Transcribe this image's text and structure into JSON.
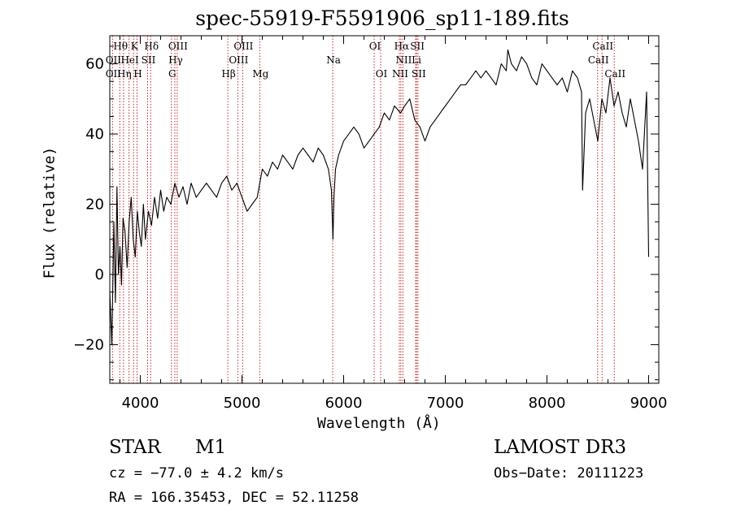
{
  "chart_data": {
    "type": "line",
    "title": "spec-55919-F5591906_sp11-189.fits",
    "xlabel": "Wavelength (Å)",
    "ylabel": "Flux (relative)",
    "xlim": [
      3700,
      9100
    ],
    "ylim": [
      -31,
      68
    ],
    "xticks": [
      4000,
      5000,
      6000,
      7000,
      8000,
      9000
    ],
    "xtick_labels": [
      "4000",
      "5000",
      "6000",
      "7000",
      "8000",
      "9000"
    ],
    "yticks": [
      -20,
      0,
      20,
      40,
      60
    ],
    "ytick_labels": [
      "−20",
      "0",
      "20",
      "40",
      "60"
    ],
    "series": [
      {
        "name": "spectrum",
        "x": [
          3700,
          3720,
          3740,
          3755,
          3770,
          3785,
          3800,
          3815,
          3830,
          3850,
          3870,
          3890,
          3910,
          3930,
          3950,
          3970,
          3990,
          4010,
          4030,
          4050,
          4080,
          4110,
          4140,
          4170,
          4200,
          4230,
          4260,
          4300,
          4340,
          4380,
          4420,
          4460,
          4500,
          4550,
          4600,
          4650,
          4700,
          4750,
          4800,
          4850,
          4900,
          4950,
          5000,
          5050,
          5100,
          5150,
          5200,
          5250,
          5300,
          5350,
          5400,
          5450,
          5500,
          5550,
          5600,
          5650,
          5700,
          5750,
          5800,
          5850,
          5880,
          5895,
          5905,
          5920,
          5950,
          6000,
          6050,
          6100,
          6150,
          6200,
          6250,
          6300,
          6350,
          6400,
          6450,
          6500,
          6560,
          6600,
          6650,
          6700,
          6750,
          6800,
          6850,
          6900,
          6950,
          7000,
          7050,
          7100,
          7150,
          7200,
          7250,
          7300,
          7350,
          7400,
          7450,
          7500,
          7550,
          7600,
          7615,
          7650,
          7700,
          7750,
          7800,
          7850,
          7900,
          7950,
          8000,
          8050,
          8100,
          8150,
          8200,
          8250,
          8300,
          8340,
          8350,
          8380,
          8420,
          8460,
          8500,
          8540,
          8580,
          8620,
          8660,
          8700,
          8740,
          8780,
          8820,
          8860,
          8900,
          8940,
          8980,
          9000
        ],
        "values": [
          -5,
          -20,
          15,
          -8,
          25,
          0,
          8,
          -3,
          16,
          12,
          2,
          15,
          22,
          10,
          5,
          18,
          12,
          8,
          20,
          10,
          18,
          14,
          22,
          16,
          24,
          18,
          22,
          20,
          26,
          22,
          25,
          20,
          26,
          22,
          24,
          26,
          24,
          22,
          26,
          28,
          24,
          26,
          22,
          18,
          20,
          22,
          30,
          28,
          32,
          30,
          34,
          32,
          30,
          34,
          36,
          34,
          32,
          36,
          34,
          30,
          24,
          10,
          22,
          30,
          34,
          38,
          40,
          42,
          40,
          36,
          38,
          40,
          42,
          46,
          44,
          48,
          46,
          48,
          50,
          44,
          42,
          38,
          42,
          44,
          46,
          48,
          50,
          52,
          54,
          54,
          56,
          58,
          56,
          58,
          56,
          54,
          60,
          58,
          64,
          60,
          58,
          62,
          60,
          56,
          54,
          60,
          58,
          56,
          54,
          56,
          52,
          58,
          56,
          52,
          24,
          46,
          50,
          44,
          38,
          50,
          46,
          56,
          48,
          52,
          46,
          42,
          50,
          44,
          38,
          30,
          52,
          5
        ]
      }
    ],
    "emission_lines": [
      {
        "label": "Hθ",
        "wavelength": 3798,
        "row": 1
      },
      {
        "label": "K",
        "wavelength": 3934,
        "row": 1
      },
      {
        "label": "Hδ",
        "wavelength": 4102,
        "row": 1
      },
      {
        "label": "OIII",
        "wavelength": 4363,
        "row": 1
      },
      {
        "label": "OIII",
        "wavelength": 5007,
        "row": 1
      },
      {
        "label": "OI",
        "wavelength": 6300,
        "row": 1
      },
      {
        "label": "Hα",
        "wavelength": 6563,
        "row": 1
      },
      {
        "label": "SII",
        "wavelength": 6717,
        "row": 1
      },
      {
        "label": "CaII",
        "wavelength": 8542,
        "row": 1
      },
      {
        "label": "OII",
        "wavelength": 3727,
        "row": 2
      },
      {
        "label": "HeI",
        "wavelength": 3889,
        "row": 2
      },
      {
        "label": "SII",
        "wavelength": 4072,
        "row": 2
      },
      {
        "label": "Hγ",
        "wavelength": 4340,
        "row": 2
      },
      {
        "label": "OIII",
        "wavelength": 4959,
        "row": 2
      },
      {
        "label": "Na",
        "wavelength": 5893,
        "row": 2
      },
      {
        "label": "NII",
        "wavelength": 6583,
        "row": 2
      },
      {
        "label": "Li",
        "wavelength": 6708,
        "row": 2
      },
      {
        "label": "CaII",
        "wavelength": 8498,
        "row": 2
      },
      {
        "label": "OII",
        "wavelength": 3727,
        "row": 3
      },
      {
        "label": "Hη",
        "wavelength": 3835,
        "row": 3
      },
      {
        "label": "H",
        "wavelength": 3968,
        "row": 3
      },
      {
        "label": "G",
        "wavelength": 4306,
        "row": 3
      },
      {
        "label": "Hβ",
        "wavelength": 4861,
        "row": 3
      },
      {
        "label": "Mg",
        "wavelength": 5175,
        "row": 3
      },
      {
        "label": "OI",
        "wavelength": 6364,
        "row": 3
      },
      {
        "label": "NII",
        "wavelength": 6548,
        "row": 3
      },
      {
        "label": "SII",
        "wavelength": 6731,
        "row": 3
      },
      {
        "label": "CaII",
        "wavelength": 8662,
        "row": 3
      }
    ],
    "marker_lines": [
      3727,
      3798,
      3835,
      3889,
      3934,
      3968,
      4072,
      4102,
      4306,
      4340,
      4363,
      4861,
      4959,
      5007,
      5175,
      5893,
      6300,
      6364,
      6548,
      6563,
      6583,
      6708,
      6717,
      6731,
      8498,
      8542,
      8662
    ]
  },
  "info": {
    "object_class": "STAR",
    "subclass": "M1",
    "survey": "LAMOST DR3",
    "redshift_text": "cz = −77.0 ± 4.2 km/s",
    "obs_date_text": "Obs−Date: 20111223",
    "coords_text": "RA = 166.35453, DEC =  52.11258"
  },
  "colors": {
    "line": "#000000",
    "marker": "#cc2222",
    "axis": "#000000"
  }
}
